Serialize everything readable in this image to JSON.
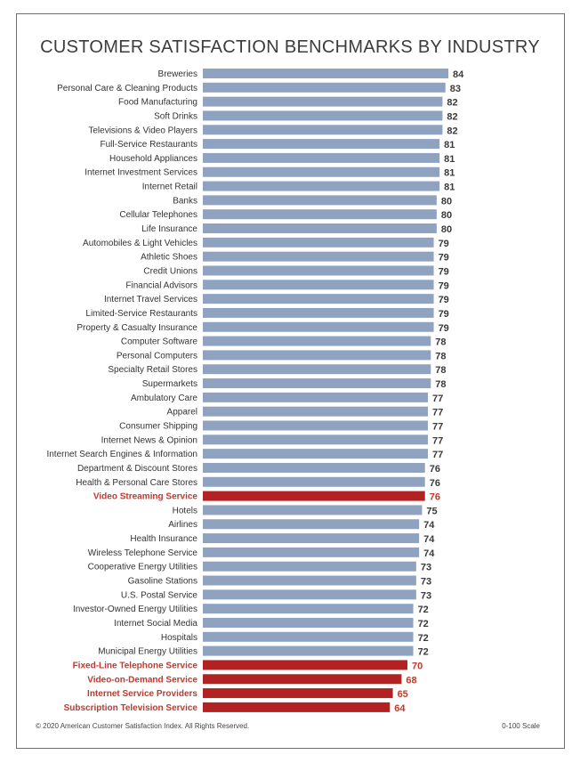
{
  "chart_data": {
    "type": "bar",
    "orientation": "horizontal",
    "title": "CUSTOMER SATISFACTION BENCHMARKS BY INDUSTRY",
    "scale_note": "0-100 Scale",
    "copyright": "© 2020 American Customer Satisfaction Index. All Rights Reserved.",
    "colors": {
      "default": "#8fa3c0",
      "highlight": "#b22222",
      "default_label": "#333333",
      "highlight_label": "#c0392b"
    },
    "bars": [
      {
        "label": "Breweries",
        "value": 84,
        "highlight": false
      },
      {
        "label": "Personal Care & Cleaning Products",
        "value": 83,
        "highlight": false
      },
      {
        "label": "Food Manufacturing",
        "value": 82,
        "highlight": false
      },
      {
        "label": "Soft Drinks",
        "value": 82,
        "highlight": false
      },
      {
        "label": "Televisions & Video Players",
        "value": 82,
        "highlight": false
      },
      {
        "label": "Full-Service Restaurants",
        "value": 81,
        "highlight": false
      },
      {
        "label": "Household Appliances",
        "value": 81,
        "highlight": false
      },
      {
        "label": "Internet Investment Services",
        "value": 81,
        "highlight": false
      },
      {
        "label": "Internet Retail",
        "value": 81,
        "highlight": false
      },
      {
        "label": "Banks",
        "value": 80,
        "highlight": false
      },
      {
        "label": "Cellular Telephones",
        "value": 80,
        "highlight": false
      },
      {
        "label": "Life Insurance",
        "value": 80,
        "highlight": false
      },
      {
        "label": "Automobiles & Light Vehicles",
        "value": 79,
        "highlight": false
      },
      {
        "label": "Athletic Shoes",
        "value": 79,
        "highlight": false
      },
      {
        "label": "Credit Unions",
        "value": 79,
        "highlight": false
      },
      {
        "label": "Financial Advisors",
        "value": 79,
        "highlight": false
      },
      {
        "label": "Internet Travel Services",
        "value": 79,
        "highlight": false
      },
      {
        "label": "Limited-Service Restaurants",
        "value": 79,
        "highlight": false
      },
      {
        "label": "Property & Casualty Insurance",
        "value": 79,
        "highlight": false
      },
      {
        "label": "Computer Software",
        "value": 78,
        "highlight": false
      },
      {
        "label": "Personal Computers",
        "value": 78,
        "highlight": false
      },
      {
        "label": "Specialty Retail Stores",
        "value": 78,
        "highlight": false
      },
      {
        "label": "Supermarkets",
        "value": 78,
        "highlight": false
      },
      {
        "label": "Ambulatory Care",
        "value": 77,
        "highlight": false
      },
      {
        "label": "Apparel",
        "value": 77,
        "highlight": false
      },
      {
        "label": "Consumer Shipping",
        "value": 77,
        "highlight": false
      },
      {
        "label": "Internet News & Opinion",
        "value": 77,
        "highlight": false
      },
      {
        "label": "Internet Search Engines & Information",
        "value": 77,
        "highlight": false
      },
      {
        "label": "Department & Discount Stores",
        "value": 76,
        "highlight": false
      },
      {
        "label": "Health & Personal Care Stores",
        "value": 76,
        "highlight": false
      },
      {
        "label": "Video Streaming Service",
        "value": 76,
        "highlight": true
      },
      {
        "label": "Hotels",
        "value": 75,
        "highlight": false
      },
      {
        "label": "Airlines",
        "value": 74,
        "highlight": false
      },
      {
        "label": "Health Insurance",
        "value": 74,
        "highlight": false
      },
      {
        "label": "Wireless Telephone Service",
        "value": 74,
        "highlight": false
      },
      {
        "label": "Cooperative Energy Utilities",
        "value": 73,
        "highlight": false
      },
      {
        "label": "Gasoline Stations",
        "value": 73,
        "highlight": false
      },
      {
        "label": "U.S. Postal Service",
        "value": 73,
        "highlight": false
      },
      {
        "label": "Investor-Owned Energy Utilities",
        "value": 72,
        "highlight": false
      },
      {
        "label": "Internet Social Media",
        "value": 72,
        "highlight": false
      },
      {
        "label": "Hospitals",
        "value": 72,
        "highlight": false
      },
      {
        "label": "Municipal Energy Utilities",
        "value": 72,
        "highlight": false
      },
      {
        "label": "Fixed-Line Telephone Service",
        "value": 70,
        "highlight": true
      },
      {
        "label": "Video-on-Demand Service",
        "value": 68,
        "highlight": true
      },
      {
        "label": "Internet Service Providers",
        "value": 65,
        "highlight": true
      },
      {
        "label": "Subscription Television Service",
        "value": 64,
        "highlight": true
      }
    ]
  }
}
